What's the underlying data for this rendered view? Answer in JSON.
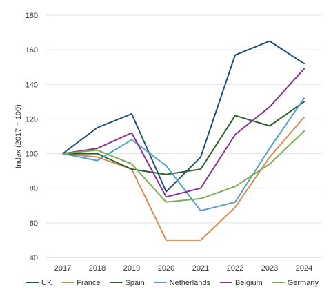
{
  "chart_data": {
    "type": "line",
    "title": "",
    "xlabel": "",
    "ylabel": "Index (2017 = 100)",
    "categories": [
      "2017",
      "2018",
      "2019",
      "2020",
      "2021",
      "2022",
      "2023",
      "2024"
    ],
    "ylim": [
      40,
      180
    ],
    "yticks": [
      40,
      60,
      80,
      100,
      120,
      140,
      160,
      180
    ],
    "grid": "horizontal",
    "legend_position": "bottom",
    "series": [
      {
        "name": "UK",
        "color": "#1f4e6e",
        "values": [
          100,
          115,
          123,
          78,
          98,
          157,
          165,
          152
        ]
      },
      {
        "name": "France",
        "color": "#d98a4e",
        "values": [
          100,
          98,
          91,
          50,
          50,
          69,
          98,
          121
        ]
      },
      {
        "name": "Spain",
        "color": "#2c5e2e",
        "values": [
          100,
          100,
          91,
          88,
          91,
          122,
          116,
          130
        ]
      },
      {
        "name": "Netherlands",
        "color": "#4fa3c7",
        "values": [
          100,
          96,
          108,
          93,
          67,
          72,
          103,
          132
        ]
      },
      {
        "name": "Belgium",
        "color": "#8a2f8f",
        "values": [
          100,
          103,
          112,
          75,
          80,
          111,
          127,
          149
        ]
      },
      {
        "name": "Germany",
        "color": "#7aad55",
        "values": [
          100,
          102,
          94,
          72,
          74,
          81,
          94,
          113
        ]
      }
    ]
  }
}
